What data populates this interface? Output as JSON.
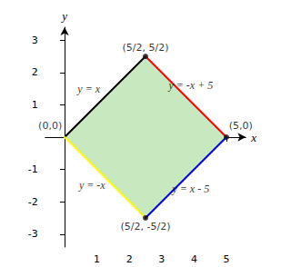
{
  "chart_data": {
    "type": "line",
    "xlabel": "x",
    "ylabel": "y",
    "xlim": [
      -0.6,
      5.6
    ],
    "ylim": [
      -3.4,
      3.4
    ],
    "xticks": [
      1,
      2,
      3,
      4,
      5
    ],
    "yticks": [
      -3,
      -2,
      -1,
      1,
      2,
      3
    ],
    "grid": false,
    "series": [
      {
        "type": "polygon",
        "color": "#c8e8c0",
        "x": [
          0,
          2.5,
          5,
          2.5
        ],
        "y": [
          0,
          2.5,
          0,
          -2.5
        ]
      },
      {
        "type": "line",
        "color": "#000000",
        "x": [
          0,
          2.5
        ],
        "y": [
          0,
          2.5
        ]
      },
      {
        "type": "line",
        "color": "#ff0000",
        "x": [
          2.5,
          5
        ],
        "y": [
          2.5,
          0
        ]
      },
      {
        "type": "line",
        "color": "#ffff00",
        "x": [
          0,
          2.5
        ],
        "y": [
          0,
          -2.5
        ]
      },
      {
        "type": "line",
        "color": "#0000ff",
        "x": [
          2.5,
          5
        ],
        "y": [
          -2.5,
          0
        ]
      },
      {
        "type": "scatter",
        "color": "#111111",
        "marker": "circle",
        "x": [
          2.5,
          5,
          2.5
        ],
        "y": [
          2.5,
          0,
          -2.5
        ]
      }
    ],
    "annotations": [
      {
        "text": "y = x",
        "x": 0.75,
        "y": 1.5
      },
      {
        "text": "y = -x + 5",
        "x": 3.9,
        "y": 1.6
      },
      {
        "text": "y = -x",
        "x": 0.85,
        "y": -1.5
      },
      {
        "text": "y = x - 5",
        "x": 3.9,
        "y": -1.6
      },
      {
        "text": "(5/2, 5/2)",
        "x": 2.5,
        "y": 2.62
      },
      {
        "text": "(5/2, -5/2)",
        "x": 2.5,
        "y": -2.62
      },
      {
        "text": "(0,0)",
        "x": -0.08,
        "y": 0.2
      },
      {
        "text": "(5,0)",
        "x": 5.08,
        "y": 0.2
      }
    ]
  }
}
